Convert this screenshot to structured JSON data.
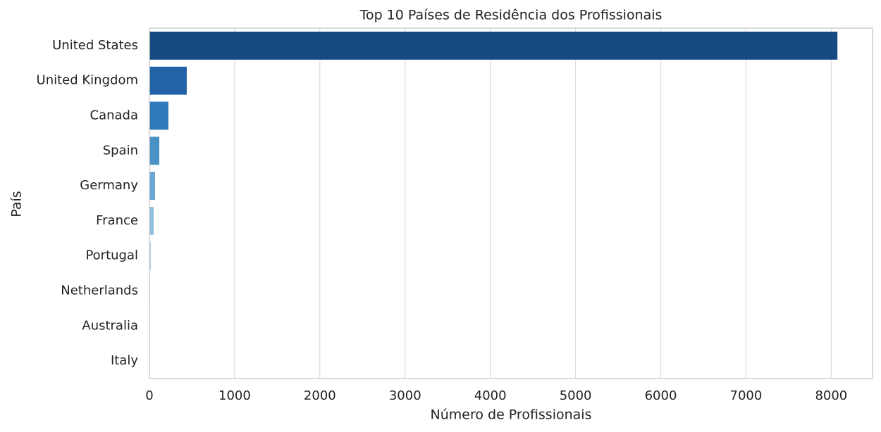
{
  "chart_data": {
    "type": "barh",
    "title": "Top 10 Países de Residência dos Profissionais",
    "xlabel": "Número de Profissionais",
    "ylabel": "País",
    "categories": [
      "United States",
      "United Kingdom",
      "Canada",
      "Spain",
      "Germany",
      "France",
      "Portugal",
      "Netherlands",
      "Australia",
      "Italy"
    ],
    "values": [
      8073,
      438,
      223,
      116,
      66,
      50,
      17,
      8,
      6,
      5
    ],
    "colors": [
      "#164a82",
      "#2163a6",
      "#2f7bba",
      "#4a91c6",
      "#6aa7d3",
      "#8fbedf",
      "#b0d2e8",
      "#cbe0f0",
      "#dde9f5",
      "#e9f1f9"
    ],
    "xlim": [
      0,
      8485
    ],
    "xticks": [
      0,
      1000,
      2000,
      3000,
      4000,
      5000,
      6000,
      7000,
      8000
    ],
    "grid": true
  }
}
